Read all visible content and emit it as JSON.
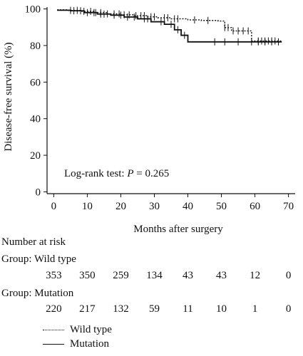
{
  "chart_data": {
    "type": "line",
    "ylabel": "Disease-free survival (%)",
    "xlabel": "Months after surgery",
    "xlim": [
      -2,
      72
    ],
    "ylim": [
      -1,
      101
    ],
    "xticks": [
      0,
      10,
      20,
      30,
      40,
      50,
      60,
      70
    ],
    "yticks": [
      0,
      20,
      40,
      60,
      80,
      100
    ],
    "annotation_prefix": "Log-rank test: ",
    "annotation_p_symbol": "P",
    "annotation_value": " = 0.265",
    "series": [
      {
        "name": "Wild type",
        "style": "dotted",
        "x": [
          1,
          4,
          8,
          12,
          16,
          20,
          24,
          28,
          31,
          35,
          40,
          44,
          49,
          51,
          53,
          56,
          59,
          68
        ],
        "y": [
          99.5,
          99.2,
          98.7,
          98.0,
          97.3,
          96.8,
          96.3,
          95.7,
          95.2,
          94.6,
          94.0,
          93.7,
          93.4,
          89.8,
          88.0,
          88.0,
          82.5,
          82.5
        ],
        "censor_x": [
          5,
          7,
          9,
          11,
          12.5,
          14,
          16,
          18,
          19.5,
          21,
          22.5,
          24.5,
          26,
          27,
          29,
          30,
          33,
          34,
          36,
          37,
          42,
          46,
          51,
          52,
          53.5,
          55,
          56.5,
          58,
          61,
          62,
          63,
          64,
          65,
          66
        ]
      },
      {
        "name": "Mutation",
        "style": "solid",
        "x": [
          1,
          5,
          9,
          13,
          17,
          21,
          25,
          29,
          33,
          36,
          38,
          40,
          68
        ],
        "y": [
          99.3,
          99.0,
          98.0,
          97.2,
          96.6,
          95.6,
          94.6,
          93.0,
          91.6,
          88.6,
          85.6,
          82.0,
          82.0
        ],
        "censor_x": [
          6,
          8,
          10,
          12,
          14,
          15,
          18,
          20,
          22,
          24,
          27,
          28,
          32,
          35,
          37,
          39,
          48,
          51,
          55,
          59,
          61,
          63,
          65,
          67
        ]
      }
    ]
  },
  "risk_table": {
    "title": "Number at risk",
    "groups": [
      {
        "label": "Group: Wild type",
        "values": [
          "353",
          "350",
          "259",
          "134",
          "43",
          "43",
          "12",
          "0"
        ]
      },
      {
        "label": "Group: Mutation",
        "values": [
          "220",
          "217",
          "132",
          "59",
          "11",
          "10",
          "1",
          "0"
        ]
      }
    ]
  },
  "legend": {
    "items": [
      {
        "label": "Wild type",
        "style": "dotted"
      },
      {
        "label": "Mutation",
        "style": "solid"
      }
    ]
  }
}
